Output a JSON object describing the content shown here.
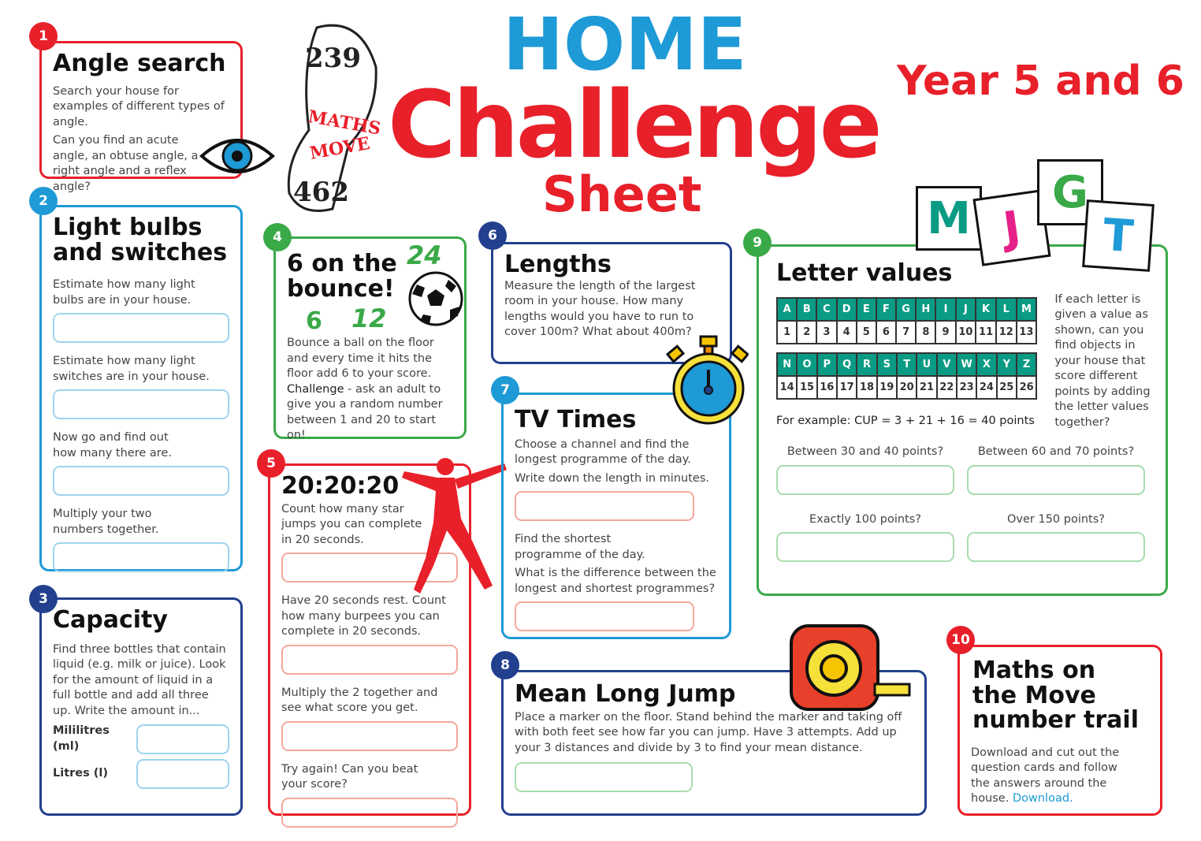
{
  "header": {
    "home": "HOME",
    "challenge": "Challenge",
    "sheet": "Sheet",
    "year": "Year 5 and 6",
    "logo_text": "MATHS on the MOVE"
  },
  "colors": {
    "red": "#e8202a",
    "light_blue": "#1e9ad6",
    "dark_blue": "#22408e",
    "green": "#3aa948",
    "teal": "#0a9b84"
  },
  "c1": {
    "num": "1",
    "title": "Angle search",
    "p1": "Search your house for examples of different types of angle.",
    "p2": "Can you find an acute angle, an obtuse angle, a right angle and a reflex angle?",
    "icon": "eye-icon"
  },
  "c2": {
    "num": "2",
    "title": "Light bulbs and switches",
    "p1": "Estimate how many light bulbs are in your house.",
    "p2": "Estimate how many light switches are in your house.",
    "p3": "Now go and find out how many there are.",
    "p4": "Multiply your two numbers together."
  },
  "c3": {
    "num": "3",
    "title": "Capacity",
    "p1": "Find three bottles that contain liquid (e.g. milk or juice). Look for the amount of liquid in a full bottle and add all three up. Write the amount in...",
    "ml": "Mililitres (ml)",
    "l": "Litres (l)"
  },
  "c4": {
    "num": "4",
    "title": "6 on the bounce!",
    "n24": "24",
    "n6": "6",
    "n12": "12",
    "p1": "Bounce a ball on the floor and every time it hits the floor add 6 to your score.",
    "challenge": "Challenge",
    "p2": " - ask an adult to give you a random number between 1 and 20 to start on!",
    "icon": "football-icon"
  },
  "c5": {
    "num": "5",
    "title": "20:20:20",
    "p1": "Count how many star jumps you can complete in 20 seconds.",
    "p2": "Have 20 seconds rest. Count how many burpees you can complete in 20 seconds.",
    "p3": "Multiply the 2 together and see what score you get.",
    "p4": "Try again! Can you beat your score?",
    "icon": "jumping-person-icon"
  },
  "c6": {
    "num": "6",
    "title": "Lengths",
    "p1": "Measure the length of the largest room in your house. How many lengths would you have to run to cover 100m? What about 400m?",
    "icon": "stopwatch-icon"
  },
  "c7": {
    "num": "7",
    "title": "TV Times",
    "p1": "Choose a channel and find the longest programme of the day.",
    "p2": "Write down the length in minutes.",
    "p3": "Find the shortest programme of the day.",
    "p4": "What is the difference between the longest and shortest programmes?"
  },
  "c8": {
    "num": "8",
    "title": "Mean Long Jump",
    "p1": "Place a marker on the floor. Stand behind the marker and taking off with both feet see how far you can jump. Have 3 attempts. Add up your 3 distances and divide by 3 to find your mean distance.",
    "icon": "tape-measure-icon"
  },
  "c9": {
    "num": "9",
    "title": "Letter values",
    "tiles": [
      "M",
      "J",
      "G",
      "T"
    ],
    "row1": [
      "A",
      "B",
      "C",
      "D",
      "E",
      "F",
      "G",
      "H",
      "I",
      "J",
      "K",
      "L",
      "M"
    ],
    "val1": [
      "1",
      "2",
      "3",
      "4",
      "5",
      "6",
      "7",
      "8",
      "9",
      "10",
      "11",
      "12",
      "13"
    ],
    "row2": [
      "N",
      "O",
      "P",
      "Q",
      "R",
      "S",
      "T",
      "U",
      "V",
      "W",
      "X",
      "Y",
      "Z"
    ],
    "val2": [
      "14",
      "15",
      "16",
      "17",
      "18",
      "19",
      "20",
      "21",
      "22",
      "23",
      "24",
      "25",
      "26"
    ],
    "example": "For example: CUP = 3 + 21 + 16 = 40 points",
    "side": "If each letter is given a value as shown, can you find objects in your house that score different points by adding the letter values together?",
    "q1": "Between 30 and 40 points?",
    "q2": "Between 60 and 70 points?",
    "q3": "Exactly 100 points?",
    "q4": "Over 150 points?"
  },
  "c10": {
    "num": "10",
    "title": "Maths on the Move number trail",
    "p1": "Download and cut out the question cards and follow the answers around the house. ",
    "link": "Download."
  }
}
